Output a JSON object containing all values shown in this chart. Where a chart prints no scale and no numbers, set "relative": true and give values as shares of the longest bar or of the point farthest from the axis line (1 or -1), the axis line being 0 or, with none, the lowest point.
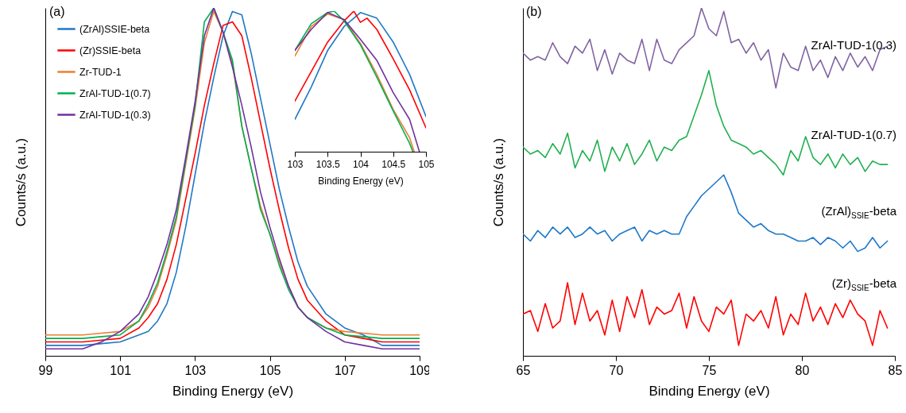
{
  "chart_data": [
    {
      "type": "line",
      "xlabel": "Binding Energy (eV)",
      "ylabel": "Counts/s (a.u.)",
      "relative": true,
      "legend": "top left",
      "annotations": [
        "(a)"
      ],
      "xlim": [
        99,
        109
      ],
      "xticks": [
        99,
        101,
        103,
        105,
        107,
        109
      ],
      "x": [
        99,
        99.5,
        100,
        100.5,
        101,
        101.5,
        101.75,
        102,
        102.25,
        102.5,
        102.75,
        103,
        103.25,
        103.5,
        103.75,
        104,
        104.25,
        104.5,
        104.75,
        105,
        105.25,
        105.5,
        105.75,
        106,
        106.5,
        107,
        107.5,
        108,
        108.5,
        109
      ],
      "series": [
        {
          "name": "(ZrAl)SSIE-beta",
          "color": "#1f78c8",
          "values": [
            0.03,
            0.03,
            0.03,
            0.035,
            0.04,
            0.06,
            0.07,
            0.1,
            0.15,
            0.24,
            0.37,
            0.52,
            0.67,
            0.8,
            0.92,
            0.99,
            0.98,
            0.87,
            0.74,
            0.61,
            0.48,
            0.37,
            0.27,
            0.2,
            0.12,
            0.08,
            0.06,
            0.03,
            0.03,
            0.03
          ]
        },
        {
          "name": "(Zr)SSIE-beta",
          "color": "#ff0000",
          "values": [
            0.04,
            0.04,
            0.04,
            0.045,
            0.05,
            0.08,
            0.11,
            0.15,
            0.22,
            0.32,
            0.45,
            0.58,
            0.72,
            0.84,
            0.95,
            0.96,
            0.92,
            0.8,
            0.67,
            0.54,
            0.42,
            0.31,
            0.22,
            0.16,
            0.1,
            0.06,
            0.05,
            0.04,
            0.04,
            0.04
          ]
        },
        {
          "name": "Zr-TUD-1",
          "color": "#ed7d31",
          "values": [
            0.06,
            0.06,
            0.06,
            0.065,
            0.07,
            0.1,
            0.14,
            0.2,
            0.29,
            0.39,
            0.55,
            0.71,
            0.9,
            0.99,
            0.93,
            0.84,
            0.66,
            0.54,
            0.43,
            0.35,
            0.27,
            0.2,
            0.14,
            0.11,
            0.08,
            0.07,
            0.065,
            0.06,
            0.06,
            0.06
          ]
        },
        {
          "name": "ZrAl-TUD-1(0.7)",
          "color": "#00b050",
          "values": [
            0.05,
            0.05,
            0.05,
            0.055,
            0.06,
            0.1,
            0.15,
            0.21,
            0.3,
            0.4,
            0.56,
            0.72,
            0.96,
            1.0,
            0.93,
            0.85,
            0.66,
            0.54,
            0.42,
            0.35,
            0.26,
            0.19,
            0.14,
            0.11,
            0.08,
            0.06,
            0.055,
            0.05,
            0.05,
            0.05
          ]
        },
        {
          "name": "ZrAl-TUD-1(0.3)",
          "color": "#7030a0",
          "values": [
            0.02,
            0.02,
            0.02,
            0.04,
            0.07,
            0.12,
            0.17,
            0.24,
            0.32,
            0.42,
            0.57,
            0.73,
            0.92,
            1.0,
            0.93,
            0.83,
            0.72,
            0.6,
            0.47,
            0.37,
            0.28,
            0.2,
            0.14,
            0.11,
            0.07,
            0.04,
            0.03,
            0.02,
            0.02,
            0.02
          ]
        }
      ]
    },
    {
      "type": "line",
      "xlabel": "Binding Energy (eV)",
      "relative": true,
      "xlim": [
        103,
        105
      ],
      "xticks": [
        103,
        103.5,
        104,
        104.5,
        105
      ],
      "series": [
        {
          "color": "#1f78c8",
          "x": [
            103,
            103.25,
            103.5,
            103.75,
            104,
            104.25,
            104.5,
            104.75,
            105
          ],
          "values": [
            0.23,
            0.46,
            0.72,
            0.89,
            0.99,
            0.95,
            0.78,
            0.55,
            0.25
          ]
        },
        {
          "color": "#ff0000",
          "x": [
            103,
            103.25,
            103.5,
            103.75,
            103.9,
            104,
            104.1,
            104.25,
            104.5,
            104.75,
            105
          ],
          "values": [
            0.36,
            0.57,
            0.78,
            0.93,
            1.0,
            0.92,
            0.95,
            0.87,
            0.66,
            0.44,
            0.17
          ]
        },
        {
          "color": "#ed7d31",
          "x": [
            103,
            103.25,
            103.5,
            103.75,
            104,
            104.25,
            104.5,
            104.75,
            104.82
          ],
          "values": [
            0.68,
            0.89,
            0.98,
            0.94,
            0.77,
            0.55,
            0.3,
            0.1,
            0
          ]
        },
        {
          "color": "#00b050",
          "x": [
            103,
            103.25,
            103.5,
            103.6,
            103.75,
            104,
            104.25,
            104.5,
            104.75,
            104.8
          ],
          "values": [
            0.72,
            0.91,
            0.99,
            1.0,
            0.93,
            0.76,
            0.53,
            0.29,
            0.06,
            0
          ]
        },
        {
          "color": "#7030a0",
          "x": [
            103,
            103.25,
            103.5,
            103.75,
            104,
            104.25,
            104.5,
            104.75,
            104.9
          ],
          "values": [
            0.72,
            0.87,
            0.99,
            0.94,
            0.8,
            0.65,
            0.42,
            0.23,
            0
          ]
        }
      ]
    },
    {
      "type": "line",
      "xlabel": "Binding Energy (eV)",
      "ylabel": "Counts/s (a.u.)",
      "relative": true,
      "annotations": [
        "(b)"
      ],
      "xlim": [
        65,
        85
      ],
      "xticks": [
        65,
        70,
        75,
        80,
        85
      ],
      "x": [
        65,
        65.4,
        65.8,
        66.2,
        66.6,
        67,
        67.4,
        67.8,
        68.2,
        68.6,
        69,
        69.4,
        69.8,
        70.2,
        70.6,
        71,
        71.4,
        71.8,
        72.2,
        72.6,
        73,
        73.4,
        73.8,
        74.2,
        74.6,
        75,
        75.4,
        75.8,
        76.2,
        76.6,
        77,
        77.4,
        77.8,
        78.2,
        78.6,
        79,
        79.4,
        79.8,
        80.2,
        80.6,
        81,
        81.4,
        81.8,
        82.2,
        82.6,
        83,
        83.4,
        83.8,
        84.2,
        84.6
      ],
      "series": [
        {
          "name": "ZrAl-TUD-1(0.3)",
          "color": "#8064a2",
          "values": [
            0.87,
            0.85,
            0.86,
            0.85,
            0.9,
            0.86,
            0.84,
            0.89,
            0.87,
            0.91,
            0.82,
            0.88,
            0.81,
            0.87,
            0.85,
            0.84,
            0.91,
            0.82,
            0.91,
            0.85,
            0.84,
            0.88,
            0.9,
            0.92,
            1.0,
            0.94,
            0.92,
            0.99,
            0.9,
            0.91,
            0.87,
            0.9,
            0.85,
            0.88,
            0.77,
            0.87,
            0.83,
            0.82,
            0.89,
            0.82,
            0.85,
            0.8,
            0.86,
            0.82,
            0.87,
            0.83,
            0.86,
            0.82,
            0.88,
            0.89
          ]
        },
        {
          "name": "ZrAl-TUD-1(0.7)",
          "color": "#20b050",
          "values": [
            0.6,
            0.58,
            0.59,
            0.57,
            0.61,
            0.58,
            0.64,
            0.54,
            0.59,
            0.56,
            0.62,
            0.53,
            0.6,
            0.56,
            0.61,
            0.55,
            0.58,
            0.62,
            0.56,
            0.6,
            0.59,
            0.62,
            0.63,
            0.69,
            0.75,
            0.82,
            0.72,
            0.66,
            0.62,
            0.61,
            0.6,
            0.58,
            0.59,
            0.57,
            0.55,
            0.52,
            0.59,
            0.56,
            0.63,
            0.57,
            0.55,
            0.58,
            0.54,
            0.58,
            0.55,
            0.57,
            0.53,
            0.56,
            0.55,
            0.55
          ]
        },
        {
          "name": "(ZrAl)$_{SSIE}$-beta",
          "color": "#1f78c8",
          "values": [
            0.35,
            0.33,
            0.36,
            0.34,
            0.37,
            0.35,
            0.37,
            0.34,
            0.35,
            0.37,
            0.35,
            0.36,
            0.33,
            0.35,
            0.36,
            0.37,
            0.33,
            0.36,
            0.35,
            0.36,
            0.35,
            0.35,
            0.4,
            0.43,
            0.46,
            0.48,
            0.5,
            0.52,
            0.47,
            0.41,
            0.39,
            0.37,
            0.38,
            0.36,
            0.35,
            0.35,
            0.34,
            0.33,
            0.33,
            0.34,
            0.32,
            0.34,
            0.33,
            0.31,
            0.33,
            0.3,
            0.31,
            0.34,
            0.31,
            0.33
          ]
        },
        {
          "name": "(Zr)$_{SSIE}$-beta",
          "color": "#ff0000",
          "values": [
            0.12,
            0.13,
            0.07,
            0.15,
            0.08,
            0.1,
            0.21,
            0.09,
            0.18,
            0.1,
            0.13,
            0.06,
            0.16,
            0.07,
            0.17,
            0.11,
            0.19,
            0.09,
            0.14,
            0.12,
            0.13,
            0.18,
            0.08,
            0.17,
            0.1,
            0.07,
            0.14,
            0.12,
            0.16,
            0.03,
            0.12,
            0.1,
            0.13,
            0.08,
            0.17,
            0.06,
            0.12,
            0.09,
            0.18,
            0.1,
            0.14,
            0.09,
            0.15,
            0.11,
            0.16,
            0.12,
            0.1,
            0.03,
            0.13,
            0.08
          ]
        }
      ]
    }
  ]
}
